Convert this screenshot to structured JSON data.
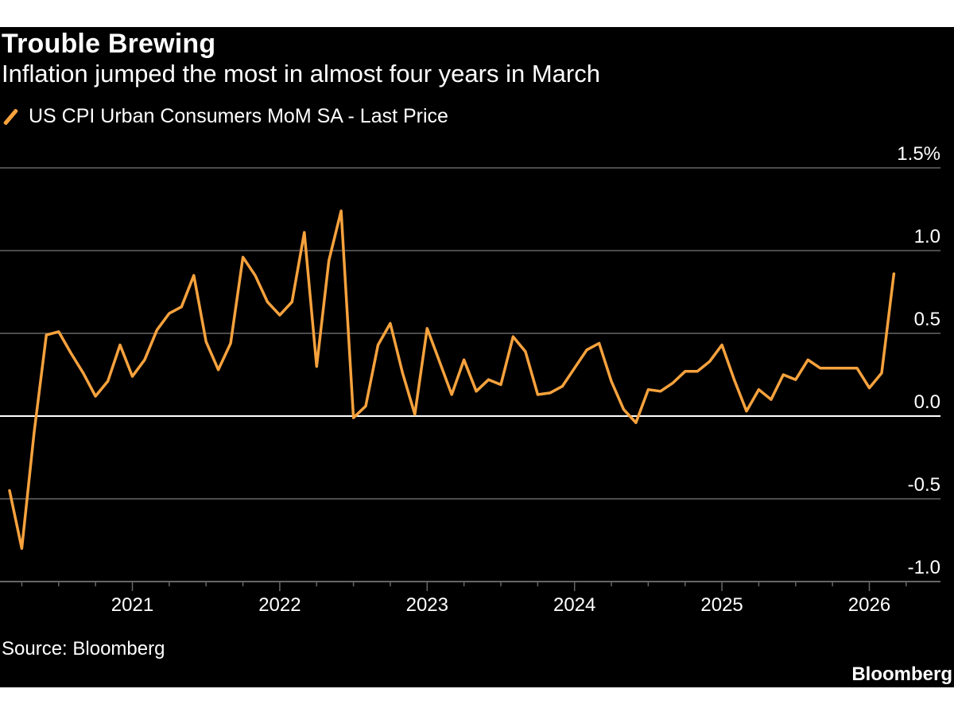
{
  "title": "Trouble Brewing",
  "subtitle": "Inflation jumped the most in almost four years in March",
  "legend": {
    "label": "US CPI Urban Consumers MoM SA - Last Price"
  },
  "source": "Source: Bloomberg",
  "brand": "Bloomberg",
  "colors": {
    "background": "#000000",
    "series": "#f7a23d",
    "grid": "#666666",
    "zero_line": "#ffffff",
    "text": "#ffffff"
  },
  "chart_data": {
    "type": "line",
    "title": "Trouble Brewing",
    "subtitle": "Inflation jumped the most in almost four years in March",
    "xlabel": "",
    "ylabel": "",
    "ylim": [
      -1.0,
      1.5
    ],
    "y_ticks": [
      {
        "value": 1.5,
        "label": "1.5%"
      },
      {
        "value": 1.0,
        "label": "1.0"
      },
      {
        "value": 0.5,
        "label": "0.5"
      },
      {
        "value": 0.0,
        "label": "0.0"
      },
      {
        "value": -0.5,
        "label": "-0.5"
      },
      {
        "value": -1.0,
        "label": "-1.0"
      }
    ],
    "x_ticks": [
      "2021",
      "2022",
      "2023",
      "2024",
      "2025",
      "2026"
    ],
    "legend_position": "top-left",
    "grid": true,
    "series": [
      {
        "name": "US CPI Urban Consumers MoM SA - Last Price",
        "x": [
          "2020-03",
          "2020-04",
          "2020-05",
          "2020-06",
          "2020-07",
          "2020-08",
          "2020-09",
          "2020-10",
          "2020-11",
          "2020-12",
          "2021-01",
          "2021-02",
          "2021-03",
          "2021-04",
          "2021-05",
          "2021-06",
          "2021-07",
          "2021-08",
          "2021-09",
          "2021-10",
          "2021-11",
          "2021-12",
          "2022-01",
          "2022-02",
          "2022-03",
          "2022-04",
          "2022-05",
          "2022-06",
          "2022-07",
          "2022-08",
          "2022-09",
          "2022-10",
          "2022-11",
          "2022-12",
          "2023-01",
          "2023-02",
          "2023-03",
          "2023-04",
          "2023-05",
          "2023-06",
          "2023-07",
          "2023-08",
          "2023-09",
          "2023-10",
          "2023-11",
          "2023-12",
          "2024-01",
          "2024-02",
          "2024-03",
          "2024-04",
          "2024-05",
          "2024-06",
          "2024-07",
          "2024-08",
          "2024-09",
          "2024-10",
          "2024-11",
          "2024-12",
          "2025-01",
          "2025-02",
          "2025-03",
          "2025-04",
          "2025-05",
          "2025-06",
          "2025-07",
          "2025-08",
          "2025-09",
          "2025-10",
          "2025-11",
          "2025-12",
          "2026-01",
          "2026-02",
          "2026-03"
        ],
        "values": [
          -0.45,
          -0.8,
          -0.1,
          0.49,
          0.51,
          0.38,
          0.26,
          0.12,
          0.21,
          0.43,
          0.24,
          0.34,
          0.52,
          0.62,
          0.66,
          0.85,
          0.45,
          0.28,
          0.44,
          0.96,
          0.85,
          0.69,
          0.61,
          0.69,
          1.11,
          0.3,
          0.94,
          1.24,
          -0.01,
          0.06,
          0.43,
          0.56,
          0.26,
          0.01,
          0.53,
          0.33,
          0.13,
          0.34,
          0.15,
          0.22,
          0.19,
          0.48,
          0.39,
          0.13,
          0.14,
          0.18,
          0.29,
          0.4,
          0.44,
          0.21,
          0.04,
          -0.04,
          0.16,
          0.15,
          0.2,
          0.27,
          0.27,
          0.33,
          0.43,
          0.22,
          0.03,
          0.16,
          0.1,
          0.25,
          0.22,
          0.34,
          0.29,
          0.29,
          0.29,
          0.29,
          0.17,
          0.26,
          0.86
        ]
      }
    ]
  }
}
